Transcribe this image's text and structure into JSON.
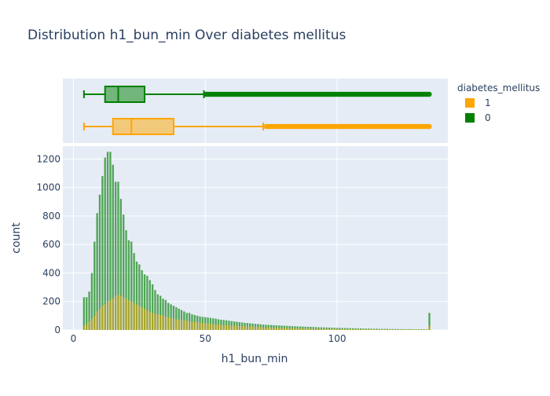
{
  "chart_data": {
    "type": "bar",
    "title": "Distribution h1_bun_min Over diabetes mellitus",
    "xlabel": "h1_bun_min",
    "ylabel": "count",
    "xlim": [
      -4,
      142
    ],
    "ylim": [
      0,
      1290
    ],
    "x_ticks": [
      0,
      50,
      100
    ],
    "y_ticks": [
      0,
      200,
      400,
      600,
      800,
      1000,
      1200
    ],
    "legend": {
      "title": "diabetes_mellitus",
      "position": "top-right",
      "entries": [
        {
          "label": "1",
          "color": "#FFA500"
        },
        {
          "label": "0",
          "color": "#008000"
        }
      ]
    },
    "box_plots": [
      {
        "name": "0",
        "color": "#008000",
        "min": 4,
        "q1": 12,
        "median": 17,
        "q3": 27,
        "whisker_high": 49.5,
        "outliers_from": 50,
        "outliers_to": 135
      },
      {
        "name": "1",
        "color": "#FFA500",
        "min": 4,
        "q1": 15,
        "median": 22,
        "q3": 38,
        "whisker_high": 72,
        "outliers_from": 73,
        "outliers_to": 135
      }
    ],
    "histogram_x": [
      4,
      5,
      6,
      7,
      8,
      9,
      10,
      11,
      12,
      13,
      14,
      15,
      16,
      17,
      18,
      19,
      20,
      21,
      22,
      23,
      24,
      25,
      26,
      27,
      28,
      29,
      30,
      31,
      32,
      33,
      34,
      35,
      36,
      37,
      38,
      39,
      40,
      41,
      42,
      43,
      44,
      45,
      46,
      47,
      48,
      49,
      50,
      51,
      52,
      53,
      54,
      55,
      56,
      57,
      58,
      59,
      60,
      61,
      62,
      63,
      64,
      65,
      66,
      67,
      68,
      69,
      70,
      71,
      72,
      73,
      74,
      75,
      76,
      77,
      78,
      79,
      80,
      81,
      82,
      83,
      84,
      85,
      86,
      87,
      88,
      89,
      90,
      91,
      92,
      93,
      94,
      95,
      96,
      97,
      98,
      99,
      100,
      101,
      102,
      103,
      104,
      105,
      106,
      107,
      108,
      109,
      110,
      111,
      112,
      113,
      114,
      115,
      116,
      117,
      118,
      119,
      120,
      121,
      122,
      123,
      124,
      125,
      126,
      127,
      128,
      129,
      130,
      131,
      132,
      133,
      134,
      135
    ],
    "series": [
      {
        "name": "0",
        "color": "#008000",
        "values": [
          230,
          230,
          270,
          400,
          620,
          820,
          950,
          1080,
          1210,
          1250,
          1250,
          1160,
          1040,
          1040,
          920,
          810,
          700,
          630,
          620,
          540,
          480,
          460,
          420,
          390,
          380,
          350,
          320,
          280,
          250,
          240,
          220,
          210,
          190,
          180,
          170,
          160,
          150,
          140,
          130,
          120,
          120,
          110,
          105,
          100,
          95,
          92,
          90,
          88,
          85,
          82,
          80,
          75,
          72,
          70,
          68,
          65,
          62,
          60,
          58,
          55,
          53,
          50,
          49,
          47,
          45,
          43,
          42,
          40,
          38,
          37,
          36,
          35,
          34,
          33,
          32,
          31,
          30,
          29,
          28,
          27,
          26,
          25,
          25,
          24,
          23,
          22,
          22,
          21,
          20,
          19,
          19,
          18,
          18,
          17,
          16,
          16,
          15,
          15,
          14,
          14,
          13,
          13,
          12,
          12,
          11,
          11,
          10,
          10,
          10,
          9,
          9,
          9,
          8,
          8,
          8,
          8,
          7,
          7,
          7,
          7,
          6,
          6,
          6,
          6,
          6,
          5,
          5,
          5,
          5,
          5,
          5,
          120
        ]
      },
      {
        "name": "1",
        "color": "#FFA500",
        "values": [
          30,
          40,
          60,
          80,
          100,
          130,
          150,
          170,
          180,
          200,
          210,
          220,
          240,
          250,
          240,
          230,
          220,
          210,
          200,
          190,
          180,
          170,
          160,
          150,
          140,
          130,
          120,
          115,
          110,
          105,
          100,
          95,
          90,
          85,
          80,
          75,
          72,
          70,
          68,
          65,
          62,
          60,
          58,
          55,
          53,
          50,
          48,
          46,
          44,
          42,
          40,
          38,
          36,
          35,
          34,
          33,
          32,
          31,
          30,
          29,
          28,
          27,
          26,
          25,
          24,
          23,
          22,
          21,
          20,
          19,
          18,
          18,
          17,
          16,
          16,
          15,
          15,
          14,
          14,
          13,
          13,
          12,
          12,
          11,
          11,
          10,
          10,
          10,
          9,
          9,
          9,
          8,
          8,
          8,
          8,
          7,
          7,
          7,
          7,
          6,
          6,
          6,
          6,
          6,
          5,
          5,
          5,
          5,
          5,
          5,
          4,
          4,
          4,
          4,
          4,
          4,
          4,
          3,
          3,
          3,
          3,
          3,
          3,
          3,
          3,
          3,
          3,
          3,
          3,
          3,
          3,
          30
        ]
      }
    ]
  }
}
